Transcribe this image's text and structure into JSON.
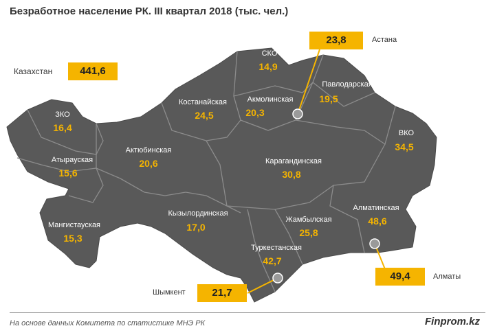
{
  "title": "Безработное население РК. III квартал 2018 (тыс. чел.)",
  "total": {
    "label": "Казахстан",
    "value": "441,6"
  },
  "regions": [
    {
      "name": "ЗКО",
      "value": "16,4"
    },
    {
      "name": "Атырауская",
      "value": "15,6"
    },
    {
      "name": "Мангистауская",
      "value": "15,3"
    },
    {
      "name": "Актюбинская",
      "value": "20,6"
    },
    {
      "name": "Костанайская",
      "value": "24,5"
    },
    {
      "name": "СКО",
      "value": "14,9"
    },
    {
      "name": "Акмолинская",
      "value": "20,3"
    },
    {
      "name": "Павлодарская",
      "value": "19,5"
    },
    {
      "name": "ВКО",
      "value": "34,5"
    },
    {
      "name": "Карагандинская",
      "value": "30,8"
    },
    {
      "name": "Кызылординская",
      "value": "17,0"
    },
    {
      "name": "Жамбылская",
      "value": "25,8"
    },
    {
      "name": "Алматинская",
      "value": "48,6"
    },
    {
      "name": "Туркестанская",
      "value": "42,7"
    }
  ],
  "cities": [
    {
      "name": "Астана",
      "value": "23,8"
    },
    {
      "name": "Алматы",
      "value": "49,4"
    },
    {
      "name": "Шымкент",
      "value": "21,7"
    }
  ],
  "colors": {
    "land": "#595959",
    "border": "#8c8c8c",
    "accent": "#f5b400"
  },
  "footer": {
    "source": "На основе данных  Комитета по статистике МНЭ РК",
    "brand": "Finprom.kz"
  }
}
